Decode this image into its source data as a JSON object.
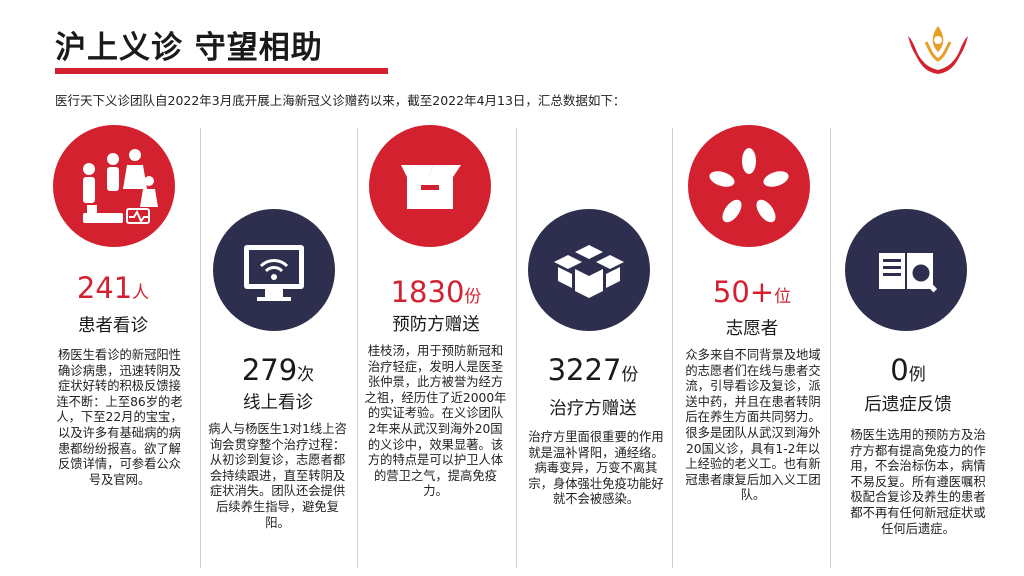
{
  "header": {
    "title": "沪上义诊 守望相助",
    "intro": "医行天下义诊团队自2022年3月底开展上海新冠义诊赠药以来，截至2022年4月13日，汇总数据如下："
  },
  "colors": {
    "accent": "#d42130",
    "navy": "#2e2f4e"
  },
  "stats": [
    {
      "icon": "family-patients-icon",
      "number": "241",
      "unit": "人",
      "label": "患者看诊",
      "desc": "杨医生看诊的新冠阳性确诊病患，迅速转阴及症状好转的积极反馈接连不断：上至86岁的老人，下至22月的宝宝，以及许多有基础病的病患都纷纷报喜。欲了解反馈详情，可参看公众号及官网。"
    },
    {
      "icon": "monitor-wifi-icon",
      "number": "279",
      "unit": "次",
      "label": "线上看诊",
      "desc": "病人与杨医生1对1线上咨询会贯穿整个治疗过程：从初诊到复诊，志愿者都会持续跟进，直至转阴及症状消失。团队还会提供后续养生指导，避免复阳。"
    },
    {
      "icon": "open-box-icon",
      "number": "1830",
      "unit": "份",
      "label": "预防方赠送",
      "desc": "桂枝汤，用于预防新冠和治疗轻症，发明人是医圣张仲景，此方被誉为经方之祖，经历住了近2000年的实证考验。在义诊团队2年来从武汉到海外20国的义诊中，效果显著。该方的特点是可以护卫人体的营卫之气，提高免疫力。"
    },
    {
      "icon": "boxes-icon",
      "number": "3227",
      "unit": "份",
      "label": "治疗方赠送",
      "desc": "治疗方里面很重要的作用就是温补肾阳，通经络。病毒变异，万变不离其宗，身体强壮免疫功能好就不会被感染。"
    },
    {
      "icon": "hands-together-icon",
      "number": "50+",
      "unit": "位",
      "label": "志愿者",
      "desc": "众多来自不同背景及地域的志愿者们在线与患者交流，引导看诊及复诊，派送中药，并且在患者转阴后在养生方面共同努力。很多是团队从武汉到海外20国义诊，具有1-2年以上经验的老义工。也有新冠患者康复后加入义工团队。"
    },
    {
      "icon": "book-magnifier-icon",
      "number": "0",
      "unit": "例",
      "label": "后遗症反馈",
      "desc": "杨医生选用的预防方及治疗方都有提高免疫力的作用，不会治标伤本，病情不易反复。所有遵医嘱积极配合复诊及养生的患者都不再有任何新冠症状或任何后遗症。"
    }
  ]
}
